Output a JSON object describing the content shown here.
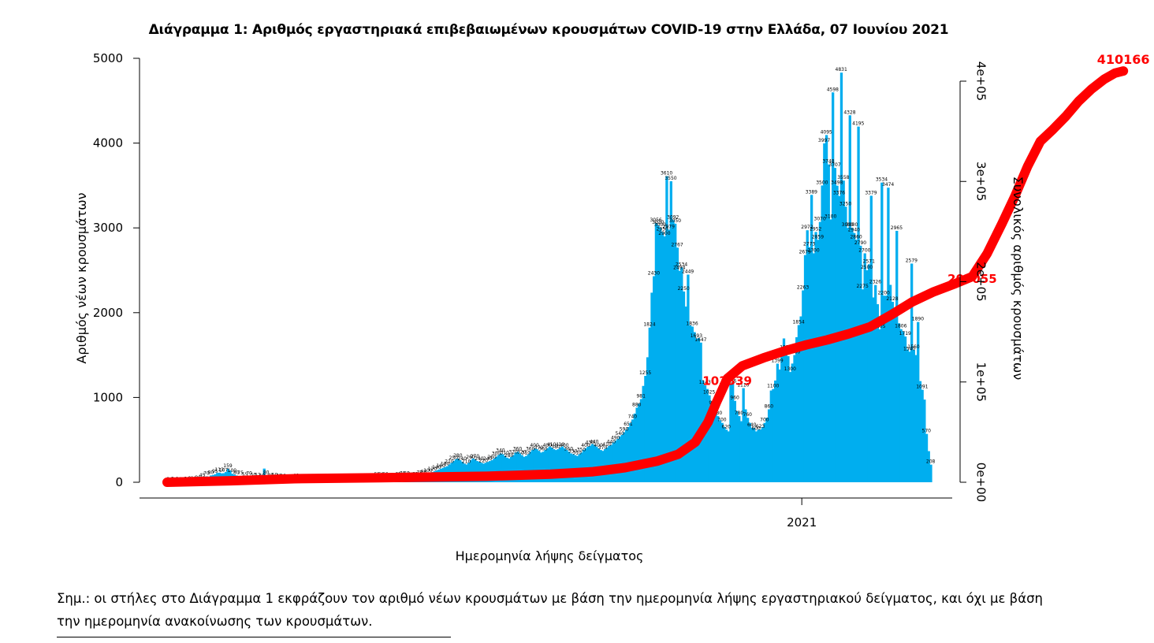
{
  "chart_data": {
    "type": "bar",
    "title": "Διάγραμμα 1: Αριθμός εργαστηριακά επιβεβαιωμένων κρουσμάτων COVID-19 στην Ελλάδα, 07 Ιουνίου 2021",
    "xlabel": "Ημερομηνία λήψης δείγματος",
    "ylabel": "Αριθμός νέων κρουσμάτων",
    "y2label": "Συνολικός αριθμός κρουσμάτων",
    "ylim": [
      0,
      5000
    ],
    "y2lim": [
      0,
      420000
    ],
    "yticks": [
      "0",
      "1000",
      "2000",
      "3000",
      "4000",
      "5000"
    ],
    "y2ticks": [
      "0e+00",
      "1e+05",
      "2e+05",
      "3e+05",
      "4e+05"
    ],
    "xticks": [
      {
        "label": "2021",
        "index": 298
      }
    ],
    "grid": false,
    "legend": "none",
    "colors": {
      "bars": "#00aeef",
      "cumulative_line": "#ff0000"
    },
    "annotations": [
      {
        "text": "103339",
        "index": 263
      },
      {
        "text": "205055",
        "index": 378
      },
      {
        "text": "410166",
        "index": 449
      }
    ],
    "series": [
      {
        "name": "Αριθμός νέων κρουσμάτων",
        "kind": "bar",
        "axis": "left",
        "values": [
          2,
          2,
          3,
          2,
          4,
          5,
          2,
          7,
          6,
          5,
          8,
          12,
          10,
          15,
          20,
          30,
          45,
          50,
          70,
          60,
          80,
          85,
          95,
          110,
          113,
          105,
          107,
          120,
          159,
          140,
          100,
          90,
          80,
          70,
          75,
          60,
          55,
          65,
          70,
          60,
          50,
          48,
          52,
          45,
          40,
          161,
          80,
          55,
          48,
          45,
          50,
          53,
          42,
          40,
          35,
          38,
          33,
          30,
          28,
          35,
          40,
          42,
          33,
          30,
          28,
          25,
          27,
          22,
          25,
          30,
          20,
          22,
          25,
          20,
          18,
          22,
          25,
          28,
          30,
          25,
          22,
          20,
          24,
          26,
          28,
          30,
          32,
          35,
          30,
          28,
          25,
          27,
          30,
          35,
          40,
          38,
          45,
          50,
          55,
          60,
          58,
          62,
          55,
          50,
          48,
          45,
          52,
          58,
          62,
          65,
          70,
          72,
          68,
          60,
          55,
          58,
          62,
          70,
          78,
          85,
          90,
          95,
          100,
          110,
          120,
          130,
          140,
          150,
          160,
          170,
          180,
          190,
          210,
          230,
          250,
          270,
          280,
          260,
          240,
          220,
          210,
          230,
          260,
          280,
          270,
          250,
          240,
          230,
          220,
          230,
          240,
          250,
          260,
          280,
          300,
          320,
          340,
          330,
          310,
          290,
          280,
          300,
          320,
          350,
          360,
          340,
          320,
          300,
          310,
          330,
          360,
          380,
          400,
          390,
          370,
          350,
          360,
          380,
          400,
          420,
          410,
          390,
          380,
          390,
          410,
          422,
          400,
          380,
          360,
          340,
          330,
          320,
          310,
          330,
          350,
          380,
          400,
          420,
          430,
          450,
          440,
          420,
          400,
          380,
          370,
          390,
          410,
          430,
          440,
          470,
          490,
          510,
          540,
          560,
          590,
          620,
          651,
          700,
          740,
          810,
          880,
          926,
          981,
          1136,
          1255,
          1474,
          1824,
          2236,
          2430,
          3056,
          3030,
          3000,
          2950,
          2900,
          3610,
          2979,
          3550,
          3092,
          3050,
          2767,
          2494,
          2534,
          2250,
          2072,
          2449,
          1850,
          1836,
          1771,
          1693,
          1700,
          1647,
          1200,
          1143,
          1100,
          1025,
          960,
          900,
          850,
          780,
          730,
          700,
          650,
          620,
          600,
          1156,
          1169,
          960,
          840,
          780,
          720,
          1110,
          860,
          760,
          700,
          640,
          640,
          600,
          620,
          623,
          650,
          700,
          760,
          860,
          1082,
          1100,
          1200,
          1399,
          1330,
          1491,
          1696,
          1557,
          1487,
          1300,
          1400,
          1500,
          1711,
          1854,
          1956,
          2263,
          2679,
          2972,
          2773,
          3389,
          2700,
          2952,
          2859,
          3070,
          3500,
          3997,
          4095,
          3748,
          3100,
          4598,
          3707,
          3498,
          3376,
          4831,
          3558,
          3250,
          3000,
          4328,
          3000,
          2940,
          2860,
          4195,
          2790,
          2275,
          2700,
          2500,
          2571,
          3379,
          2180,
          2326,
          2100,
          1805,
          3534,
          2200,
          2200,
          3474,
          2328,
          2128,
          2015,
          2965,
          1875,
          1806,
          1781,
          1719,
          1567,
          1540,
          2579,
          1560,
          1500,
          1890,
          1193,
          1091,
          975,
          570,
          367,
          208
        ]
      },
      {
        "name": "Συνολικός αριθμός κρουσμάτων",
        "kind": "line",
        "axis": "right",
        "points": [
          [
            0,
            0
          ],
          [
            30,
            1500
          ],
          [
            60,
            3500
          ],
          [
            100,
            4500
          ],
          [
            150,
            6000
          ],
          [
            180,
            8000
          ],
          [
            200,
            10500
          ],
          [
            215,
            14500
          ],
          [
            230,
            21000
          ],
          [
            240,
            28000
          ],
          [
            248,
            40000
          ],
          [
            254,
            60000
          ],
          [
            258,
            80000
          ],
          [
            263,
            103339
          ],
          [
            270,
            116000
          ],
          [
            280,
            124000
          ],
          [
            290,
            131000
          ],
          [
            300,
            137000
          ],
          [
            310,
            142000
          ],
          [
            320,
            148000
          ],
          [
            330,
            155000
          ],
          [
            340,
            167000
          ],
          [
            350,
            180000
          ],
          [
            360,
            190000
          ],
          [
            370,
            198000
          ],
          [
            378,
            205055
          ],
          [
            385,
            228000
          ],
          [
            392,
            258000
          ],
          [
            398,
            285000
          ],
          [
            404,
            315000
          ],
          [
            410,
            340000
          ],
          [
            416,
            352000
          ],
          [
            422,
            365000
          ],
          [
            428,
            380000
          ],
          [
            434,
            392000
          ],
          [
            440,
            402000
          ],
          [
            445,
            408000
          ],
          [
            449,
            410166
          ]
        ]
      }
    ]
  },
  "note": {
    "text": "Σημ.: οι στήλες στο Διάγραμμα 1 εκφράζουν τον αριθμό νέων κρουσμάτων με βάση την ημερομηνία λήψης εργαστηριακού δείγματος, και όχι με βάση την ημερομηνία ανακοίνωσης των κρουσμάτων."
  }
}
